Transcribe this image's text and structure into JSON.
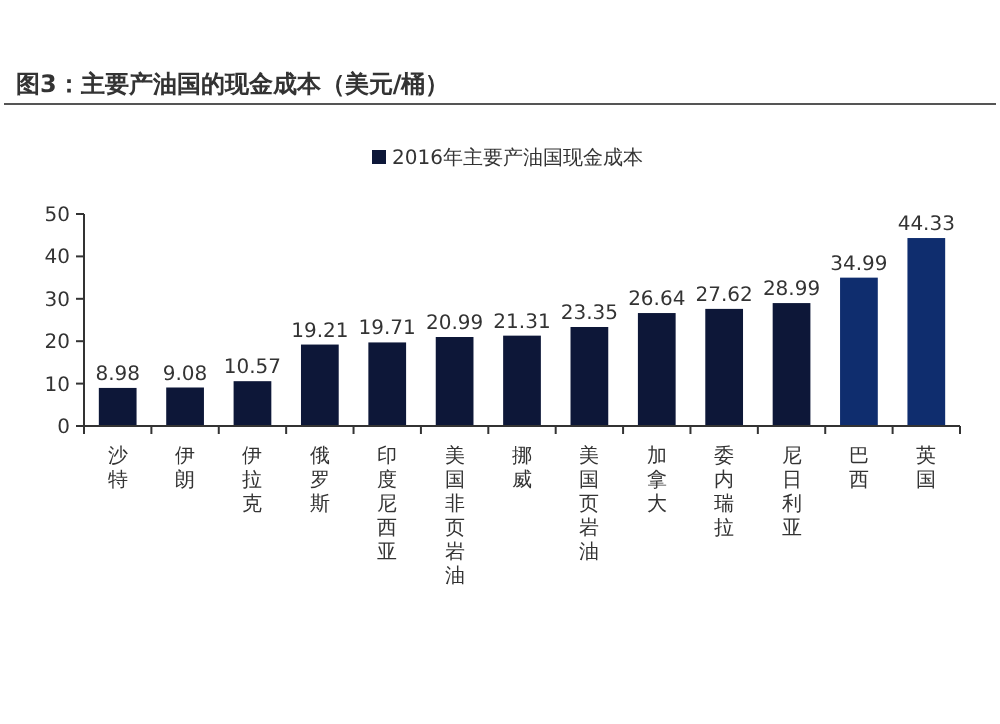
{
  "chart_data": {
    "type": "bar",
    "title": "图3：主要产油国的现金成本（美元/桶）",
    "categories": [
      "沙特",
      "伊朗",
      "伊拉克",
      "俄罗斯",
      "印度尼西亚",
      "美国非页岩油",
      "挪威",
      "美国页岩油",
      "加拿大",
      "委内瑞拉",
      "尼日利亚",
      "巴西",
      "英国"
    ],
    "series": [
      {
        "name": "2016年主要产油国现金成本",
        "color": "#0d1738",
        "colors": [
          "#0d1738",
          "#0d1738",
          "#0d1738",
          "#0d1738",
          "#0d1738",
          "#0d1738",
          "#0d1738",
          "#0d1738",
          "#0d1738",
          "#0d1738",
          "#0d1738",
          "#0f2d6e",
          "#0f2d6e"
        ],
        "values": [
          8.98,
          9.08,
          10.57,
          19.21,
          19.71,
          20.99,
          21.31,
          23.35,
          26.64,
          27.62,
          28.99,
          34.99,
          44.33
        ]
      }
    ],
    "ylim": [
      0,
      50
    ],
    "yticks": [
      0,
      10,
      20,
      30,
      40,
      50
    ],
    "data_labels": true,
    "legend": "top",
    "grid": false
  }
}
